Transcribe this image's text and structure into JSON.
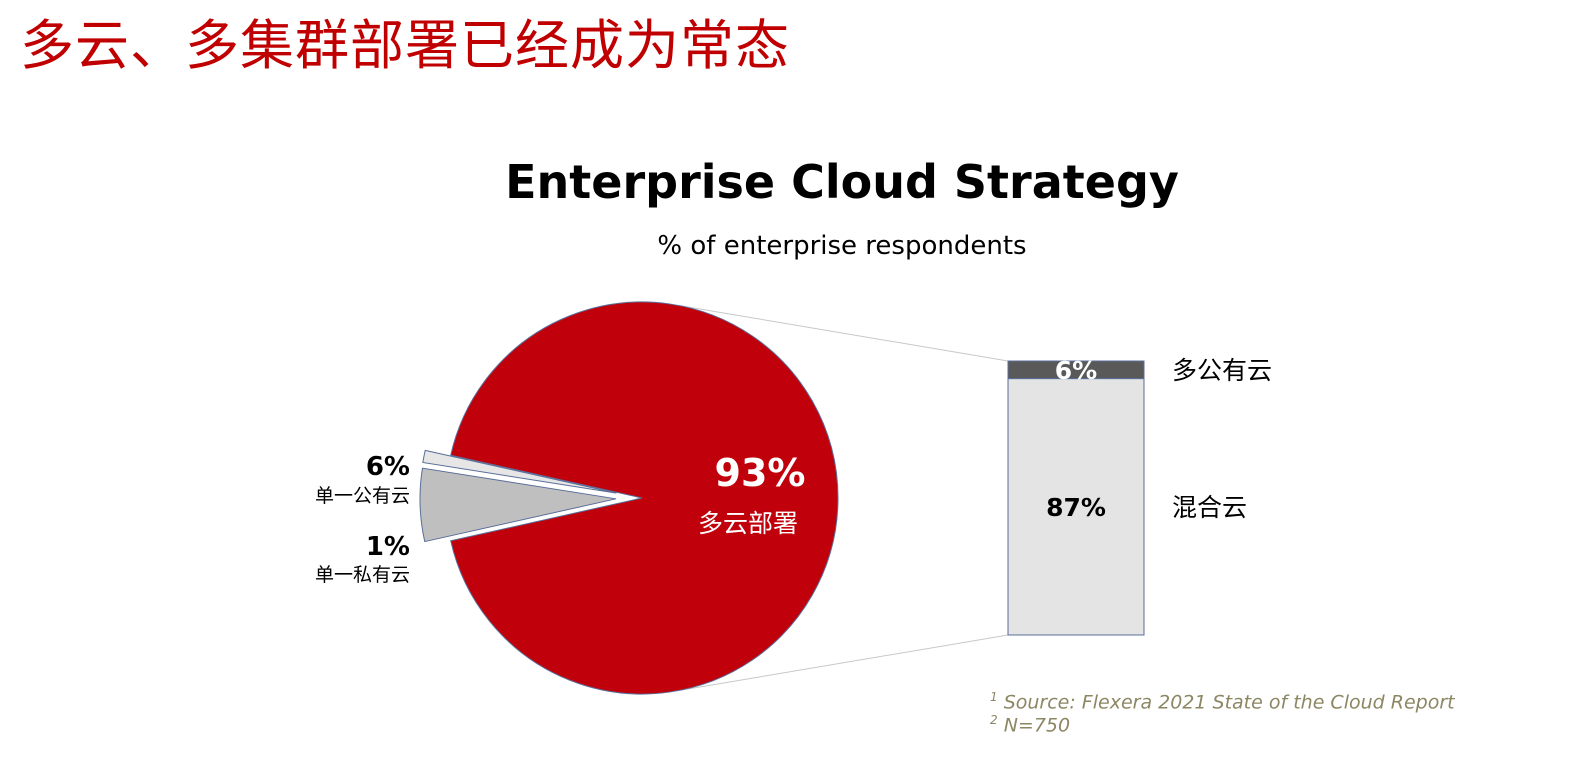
{
  "slide": {
    "title": "多云、多集群部署已经成为常态",
    "title_color": "#c00000"
  },
  "colors": {
    "multi_cloud": "#c0000b",
    "single_public": "#bfbfbf",
    "single_private": "#e6e6e6",
    "multi_public": "#595959",
    "hybrid": "#e4e4e4",
    "outline": "#5a6e99",
    "footnote": "#8c8662"
  },
  "chart_data": {
    "type": "pie",
    "title": "Enterprise Cloud Strategy",
    "subtitle": "% of enterprise respondents",
    "slices": [
      {
        "label": "多云部署",
        "value": 93,
        "value_label": "93%"
      },
      {
        "label": "单一公有云",
        "value": 6,
        "value_label": "6%"
      },
      {
        "label": "单一私有云",
        "value": 1,
        "value_label": "1%"
      }
    ],
    "breakdown": {
      "of_slice": "多云部署",
      "segments": [
        {
          "label": "多公有云",
          "value": 6,
          "value_label": "6%"
        },
        {
          "label": "混合云",
          "value": 87,
          "value_label": "87%"
        }
      ]
    }
  },
  "footnotes": [
    {
      "marker": "1",
      "text": "Source: Flexera 2021 State of the Cloud Report"
    },
    {
      "marker": "2",
      "text": "N=750"
    }
  ]
}
